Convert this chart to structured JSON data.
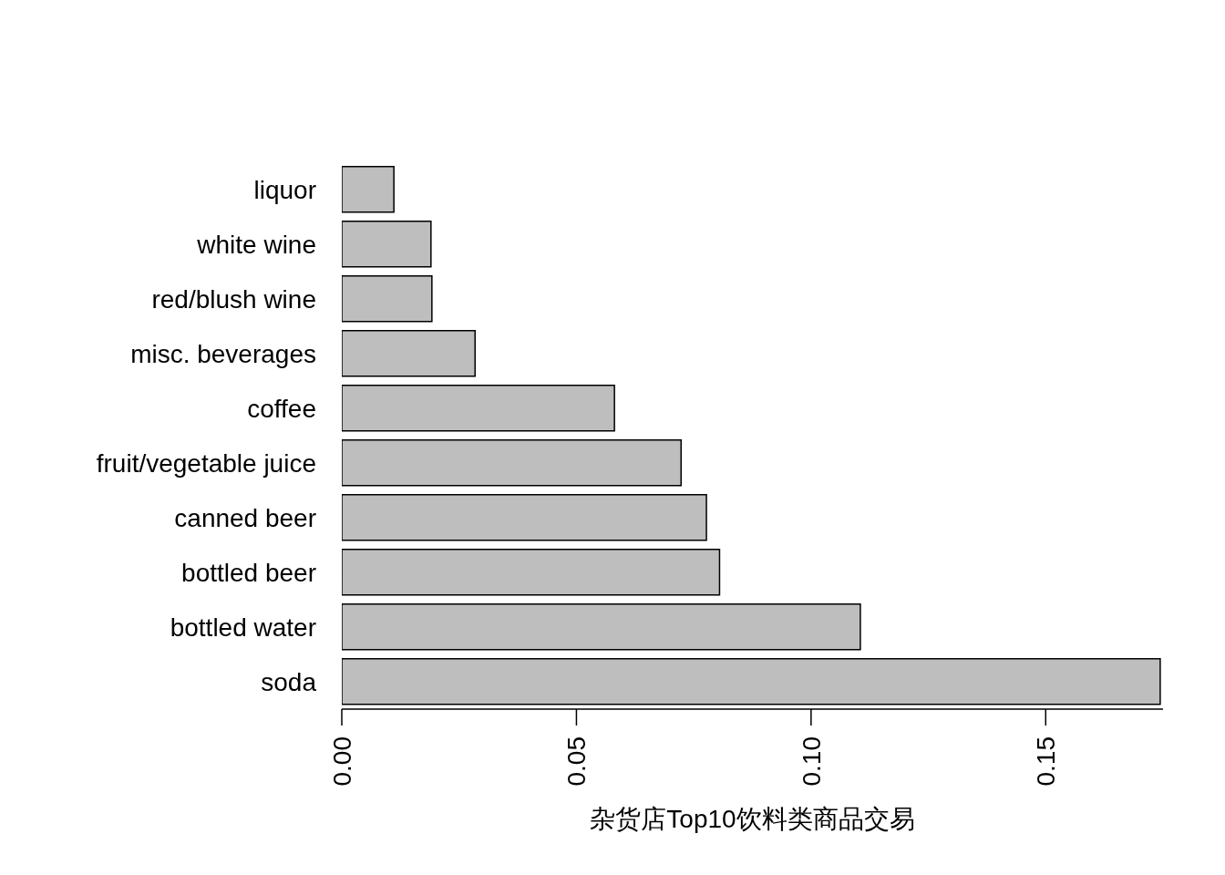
{
  "chart_data": {
    "type": "bar",
    "orientation": "horizontal",
    "xlabel": "杂货店Top10饮料类商品交易",
    "categories": [
      "liquor",
      "white wine",
      "red/blush wine",
      "misc. beverages",
      "coffee",
      "fruit/vegetable juice",
      "canned beer",
      "bottled beer",
      "bottled water",
      "soda"
    ],
    "values": [
      0.0111,
      0.019,
      0.0192,
      0.0284,
      0.0581,
      0.0723,
      0.0777,
      0.0805,
      0.1105,
      0.1744
    ],
    "color": "#bebebe",
    "xlim": [
      0,
      0.175
    ],
    "xticks": [
      {
        "value": 0,
        "label": "0.00"
      },
      {
        "value": 0.05,
        "label": "0.05"
      },
      {
        "value": 0.1,
        "label": "0.10"
      },
      {
        "value": 0.15,
        "label": "0.15"
      }
    ],
    "grid": false,
    "legend": false
  }
}
